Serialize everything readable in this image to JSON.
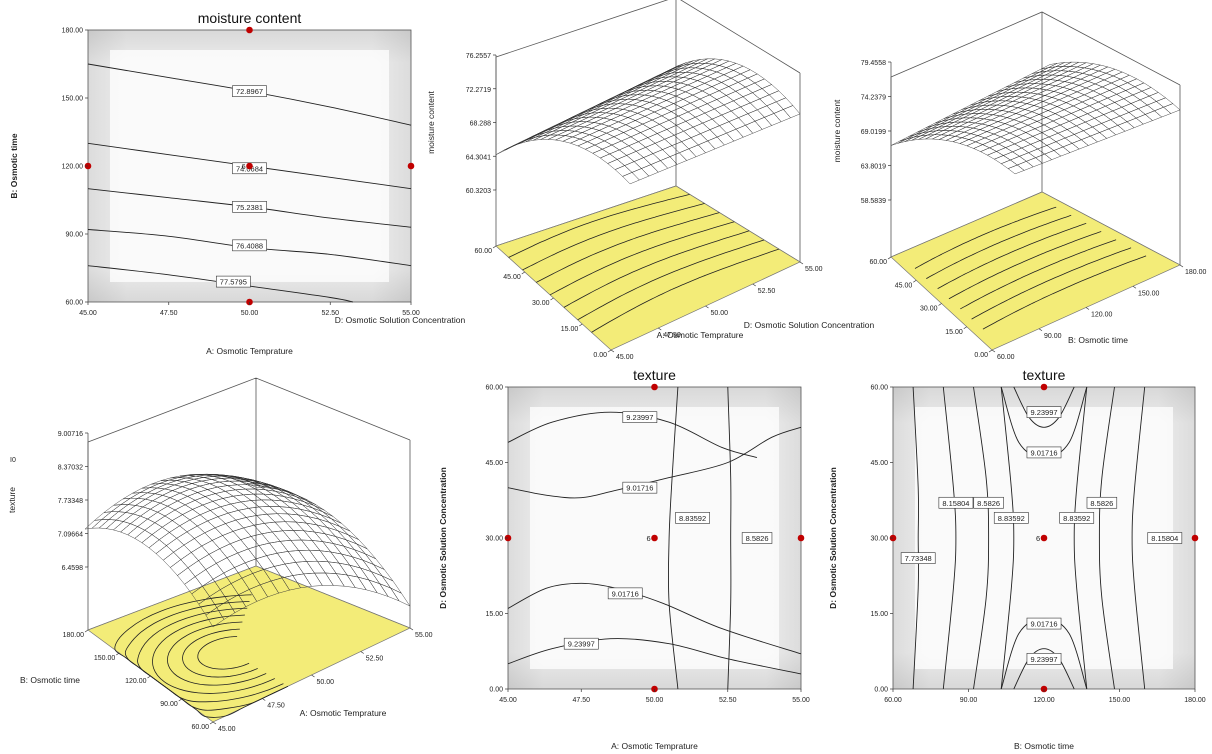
{
  "chart_data": [
    {
      "id": "p1",
      "type": "contour",
      "title": "moisture content",
      "xlabel": "A: Osmotic Temprature",
      "ylabel": "B: Osmotic time",
      "x_ticks": [
        "45.00",
        "47.50",
        "50.00",
        "52.50",
        "55.00"
      ],
      "y_ticks": [
        "60.00",
        "90.00",
        "120.00",
        "150.00",
        "180.00"
      ],
      "xlim": [
        45,
        55
      ],
      "ylim": [
        60,
        180
      ],
      "contours": [
        {
          "label": "72.8967",
          "points": [
            [
              45,
              165
            ],
            [
              47.5,
              159
            ],
            [
              50,
              153
            ],
            [
              52.5,
              146
            ],
            [
              55,
              138
            ]
          ],
          "label_at": [
            50,
            153
          ]
        },
        {
          "label": "74.0684",
          "points": [
            [
              45,
              130
            ],
            [
              47.5,
              125
            ],
            [
              50,
              120
            ],
            [
              52.5,
              115
            ],
            [
              55,
              110
            ]
          ],
          "label_at": [
            50,
            119
          ]
        },
        {
          "label": "75.2381",
          "points": [
            [
              45,
              110
            ],
            [
              47.5,
              106
            ],
            [
              50,
              102
            ],
            [
              52.5,
              97
            ],
            [
              55,
              93
            ]
          ],
          "label_at": [
            50,
            102
          ]
        },
        {
          "label": "76.4088",
          "points": [
            [
              45,
              92
            ],
            [
              47.5,
              89
            ],
            [
              50,
              84
            ],
            [
              52.5,
              81
            ],
            [
              55,
              76
            ]
          ],
          "label_at": [
            50,
            85
          ]
        },
        {
          "label": "77.5795",
          "points": [
            [
              45,
              76
            ],
            [
              47.5,
              72
            ],
            [
              50,
              67
            ],
            [
              52.5,
              62
            ],
            [
              53.2,
              60
            ]
          ],
          "label_at": [
            49.5,
            69
          ]
        }
      ],
      "design_points": [
        [
          50,
          180
        ],
        [
          45,
          120
        ],
        [
          50,
          120
        ],
        [
          55,
          120
        ],
        [
          50,
          60
        ]
      ],
      "center_label": "6"
    },
    {
      "id": "p2",
      "type": "surface",
      "zlabel": "moisture content",
      "xlabel": "A: Osmotic Temprature",
      "ylabel": "D: Osmotic Solution Concentration",
      "z_ticks": [
        "60.3203",
        "64.3041",
        "68.288",
        "72.2719",
        "76.2557"
      ],
      "x_ticks": [
        "45.00",
        "47.50",
        "50.00",
        "52.50",
        "55.00"
      ],
      "y_ticks": [
        "0.00",
        "15.00",
        "30.00",
        "45.00",
        "60.00"
      ]
    },
    {
      "id": "p3",
      "type": "surface",
      "zlabel": "moisture content",
      "xlabel": "B: Osmotic time",
      "ylabel": "D: Osmotic Solution Concentration",
      "z_ticks": [
        "58.5839",
        "63.8019",
        "69.0199",
        "74.2379",
        "79.4558"
      ],
      "x_ticks": [
        "60.00",
        "90.00",
        "120.00",
        "150.00",
        "180.00"
      ],
      "y_ticks": [
        "0.00",
        "15.00",
        "30.00",
        "45.00",
        "60.00"
      ]
    },
    {
      "id": "p4",
      "type": "surface",
      "zlabel": "texture",
      "xlabel": "A: Osmotic Temprature",
      "ylabel": "B: Osmotic time",
      "z_ticks": [
        "6.4598",
        "7.09664",
        "7.73348",
        "8.37032",
        "9.00716"
      ],
      "x_ticks": [
        "45.00",
        "47.50",
        "50.00",
        "52.50",
        "55.00"
      ],
      "y_ticks": [
        "60.00",
        "90.00",
        "120.00",
        "150.00",
        "180.00"
      ]
    },
    {
      "id": "p5",
      "type": "contour",
      "title": "texture",
      "xlabel": "A: Osmotic Temprature",
      "ylabel": "D: Osmotic Solution Concentration",
      "x_ticks": [
        "45.00",
        "47.50",
        "50.00",
        "52.50",
        "55.00"
      ],
      "y_ticks": [
        "0.00",
        "15.00",
        "30.00",
        "45.00",
        "60.00"
      ],
      "xlim": [
        45,
        55
      ],
      "ylim": [
        0,
        60
      ],
      "contours": [
        {
          "label": "9.23997",
          "points": [
            [
              45,
              49
            ],
            [
              46.5,
              53
            ],
            [
              48.5,
              55
            ],
            [
              50.5,
              53
            ],
            [
              52.3,
              48
            ],
            [
              53.5,
              46
            ]
          ],
          "label_at": [
            49.5,
            54
          ]
        },
        {
          "label": "9.01716",
          "points": [
            [
              45,
              40
            ],
            [
              46.3,
              38.5
            ],
            [
              47.5,
              38
            ],
            [
              48.7,
              39.5
            ],
            [
              50.5,
              42
            ],
            [
              52.5,
              45
            ],
            [
              54,
              50
            ],
            [
              55,
              52
            ]
          ],
          "label_at": [
            49.5,
            40
          ]
        },
        {
          "label": "8.83592",
          "points": [
            [
              50.8,
              60
            ],
            [
              50.6,
              42
            ],
            [
              50.5,
              30
            ],
            [
              50.5,
              17
            ],
            [
              50.8,
              0
            ]
          ],
          "label_at": [
            51.3,
            34
          ]
        },
        {
          "label": "8.5826",
          "points": [
            [
              52.5,
              60
            ],
            [
              52.6,
              42
            ],
            [
              52.6,
              30
            ],
            [
              52.6,
              17
            ],
            [
              52.5,
              0
            ]
          ],
          "label_at": [
            53.5,
            30
          ]
        },
        {
          "label": "9.01716",
          "points": [
            [
              45,
              16
            ],
            [
              46.3,
              20
            ],
            [
              47.5,
              21
            ],
            [
              48.7,
              20
            ],
            [
              50.3,
              17
            ],
            [
              52.3,
              12
            ],
            [
              55,
              7
            ]
          ],
          "label_at": [
            49,
            19
          ]
        },
        {
          "label": "9.23997",
          "points": [
            [
              45,
              5
            ],
            [
              46.5,
              8
            ],
            [
              48.5,
              10
            ],
            [
              50.5,
              9
            ],
            [
              52.5,
              6
            ],
            [
              55,
              3
            ]
          ],
          "label_at": [
            47.5,
            9
          ]
        }
      ],
      "design_points": [
        [
          50,
          60
        ],
        [
          45,
          30
        ],
        [
          50,
          30
        ],
        [
          55,
          30
        ],
        [
          50,
          0
        ]
      ],
      "center_label": "6"
    },
    {
      "id": "p6",
      "type": "contour",
      "title": "texture",
      "xlabel": "B: Osmotic time",
      "ylabel": "D: Osmotic Solution Concentration",
      "x_ticks": [
        "60.00",
        "90.00",
        "120.00",
        "150.00",
        "180.00"
      ],
      "y_ticks": [
        "0.00",
        "15.00",
        "30.00",
        "45.00",
        "60.00"
      ],
      "xlim": [
        60,
        180
      ],
      "ylim": [
        0,
        60
      ],
      "contours": [
        {
          "label": "7.73348",
          "points": [
            [
              68,
              60
            ],
            [
              70,
              40
            ],
            [
              70,
              30
            ],
            [
              70,
              20
            ],
            [
              68,
              0
            ]
          ],
          "label_at": [
            70,
            26
          ]
        },
        {
          "label": "8.15804",
          "points": [
            [
              80,
              60
            ],
            [
              84,
              40
            ],
            [
              85,
              30
            ],
            [
              84,
              20
            ],
            [
              80,
              0
            ]
          ],
          "label_at": [
            85,
            37
          ]
        },
        {
          "label": "8.5826",
          "points": [
            [
              92,
              60
            ],
            [
              97,
              42
            ],
            [
              98,
              30
            ],
            [
              97,
              18
            ],
            [
              92,
              0
            ]
          ],
          "label_at": [
            98,
            37
          ]
        },
        {
          "label": "8.83592",
          "points": [
            [
              103,
              60
            ],
            [
              107,
              40
            ],
            [
              108,
              30
            ],
            [
              107,
              20
            ],
            [
              103,
              0
            ]
          ],
          "label_at": [
            107,
            34
          ]
        },
        {
          "label": "9.23997",
          "points": [
            [
              108,
              60
            ],
            [
              114,
              54
            ],
            [
              120,
              52
            ],
            [
              126,
              54
            ],
            [
              132,
              60
            ]
          ],
          "label_at": [
            120,
            55
          ]
        },
        {
          "label": "9.01716",
          "points": [
            [
              103,
              60
            ],
            [
              110,
              49
            ],
            [
              120,
              46
            ],
            [
              130,
              49
            ],
            [
              137,
              60
            ]
          ],
          "label_at": [
            120,
            47
          ]
        },
        {
          "label": "8.83592",
          "points": [
            [
              137,
              60
            ],
            [
              133,
              40
            ],
            [
              132,
              30
            ],
            [
              133,
              20
            ],
            [
              137,
              0
            ]
          ],
          "label_at": [
            133,
            34
          ]
        },
        {
          "label": "8.5826",
          "points": [
            [
              148,
              60
            ],
            [
              143,
              42
            ],
            [
              142,
              30
            ],
            [
              143,
              18
            ],
            [
              148,
              0
            ]
          ],
          "label_at": [
            143,
            37
          ]
        },
        {
          "label": "8.15804",
          "points": [
            [
              160,
              60
            ],
            [
              156,
              40
            ],
            [
              155,
              30
            ],
            [
              156,
              20
            ],
            [
              160,
              0
            ]
          ],
          "label_at": [
            168,
            30
          ]
        },
        {
          "label": "9.01716",
          "points": [
            [
              103,
              0
            ],
            [
              110,
              11
            ],
            [
              120,
              14
            ],
            [
              130,
              11
            ],
            [
              137,
              0
            ]
          ],
          "label_at": [
            120,
            13
          ]
        },
        {
          "label": "9.23997",
          "points": [
            [
              108,
              0
            ],
            [
              114,
              6
            ],
            [
              120,
              8
            ],
            [
              126,
              6
            ],
            [
              132,
              0
            ]
          ],
          "label_at": [
            120,
            6
          ]
        }
      ],
      "design_points": [
        [
          120,
          60
        ],
        [
          60,
          30
        ],
        [
          120,
          30
        ],
        [
          180,
          30
        ],
        [
          120,
          0
        ]
      ],
      "center_label": "6"
    }
  ]
}
